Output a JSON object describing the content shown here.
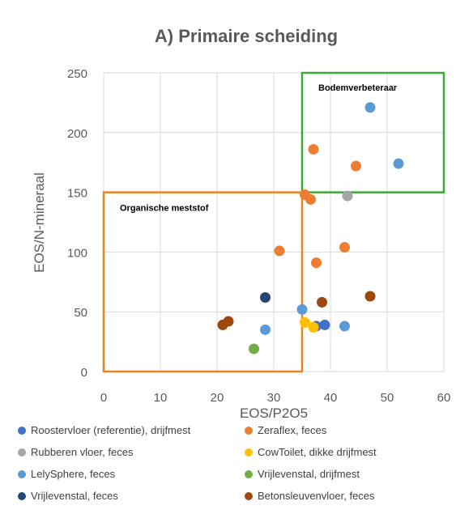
{
  "chart_data": {
    "type": "scatter",
    "title": "A) Primaire scheiding",
    "xlabel": "EOS/P2O5",
    "ylabel": "EOS/N-mineraal",
    "xlim": [
      0,
      60
    ],
    "ylim": [
      0,
      250
    ],
    "x_ticks": [
      "0",
      "10",
      "20",
      "30",
      "40",
      "50",
      "60"
    ],
    "y_ticks": [
      "0",
      "50",
      "100",
      "150",
      "200",
      "250"
    ],
    "grid": true,
    "legend_position": "bottom",
    "regions": [
      {
        "label": "Bodemverbeteraar",
        "x": [
          35,
          60
        ],
        "y": [
          150,
          250
        ],
        "color": "#3aaa35"
      },
      {
        "label": "Organische meststof",
        "x": [
          0,
          35
        ],
        "y": [
          0,
          150
        ],
        "color": "#f07f1e"
      }
    ],
    "series": [
      {
        "name": "Roostervloer (referentie), drijfmest",
        "color": "#4472c4",
        "points": [
          [
            37.5,
            38
          ],
          [
            39,
            39
          ]
        ]
      },
      {
        "name": "Zeraflex, feces",
        "color": "#ed7d31",
        "points": [
          [
            37,
            186
          ],
          [
            44.5,
            172
          ],
          [
            35.5,
            148
          ],
          [
            36.5,
            144
          ],
          [
            31,
            101
          ],
          [
            37.5,
            91
          ],
          [
            42.5,
            104
          ]
        ]
      },
      {
        "name": "Rubberen vloer, feces",
        "color": "#a5a5a5",
        "points": [
          [
            43,
            147
          ]
        ]
      },
      {
        "name": "CowToilet, dikke drijfmest",
        "color": "#ffc000",
        "points": [
          [
            35.5,
            41
          ],
          [
            37,
            37
          ]
        ]
      },
      {
        "name": "LelySphere, feces",
        "color": "#5b9bd5",
        "points": [
          [
            47,
            221
          ],
          [
            52,
            174
          ],
          [
            35,
            52
          ],
          [
            28.5,
            35
          ],
          [
            42.5,
            38
          ]
        ]
      },
      {
        "name": "Vrijlevenstal, drijfmest",
        "color": "#70ad47",
        "points": [
          [
            26.5,
            19
          ]
        ]
      },
      {
        "name": "Vrijlevenstal, feces",
        "color": "#264478",
        "points": [
          [
            28.5,
            62
          ]
        ]
      },
      {
        "name": "Betonsleuvenvloer, feces",
        "color": "#9e480e",
        "points": [
          [
            21,
            39
          ],
          [
            22,
            42
          ],
          [
            38.5,
            58
          ],
          [
            47,
            63
          ]
        ]
      }
    ]
  }
}
